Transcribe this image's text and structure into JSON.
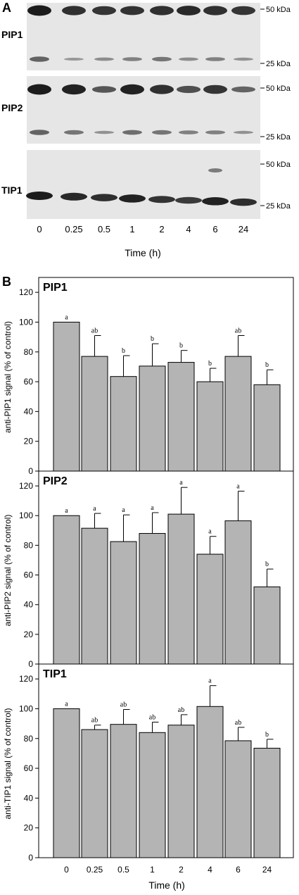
{
  "panel_a": {
    "letter": "A",
    "marker_50": "50 kDa",
    "marker_25": "25 kDa",
    "blots": [
      {
        "label": "PIP1",
        "bands_50": [
          1.0,
          0.85,
          0.8,
          0.82,
          0.85,
          0.9,
          0.85,
          0.8
        ],
        "bands_25": [
          0.7,
          0.25,
          0.35,
          0.45,
          0.55,
          0.35,
          0.45,
          0.3
        ]
      },
      {
        "label": "PIP2",
        "bands_50": [
          1.0,
          0.95,
          0.55,
          0.95,
          0.85,
          0.6,
          0.8,
          0.45
        ],
        "bands_25": [
          0.7,
          0.55,
          0.3,
          0.6,
          0.55,
          0.45,
          0.45,
          0.3
        ]
      },
      {
        "label": "TIP1",
        "bands_28": [
          1.0,
          0.9,
          0.85,
          0.95,
          0.8,
          0.75,
          0.95,
          0.85
        ],
        "extra_50_lane": 6
      }
    ],
    "lanes": [
      "0",
      "0.25",
      "0.5",
      "1",
      "2",
      "4",
      "6",
      "24"
    ],
    "xlabel": "Time (h)"
  },
  "panel_b": {
    "letter": "B",
    "xlabel": "Time (h)"
  },
  "chart_data": [
    {
      "type": "bar",
      "title": "PIP1",
      "categories": [
        "0",
        "0.25",
        "0.5",
        "1",
        "2",
        "4",
        "6",
        "24"
      ],
      "values": [
        100,
        77,
        63.5,
        70.5,
        73,
        60,
        77,
        58
      ],
      "errors": [
        0,
        14,
        14,
        15,
        8,
        9,
        14,
        10
      ],
      "significance": [
        "a",
        "ab",
        "b",
        "b",
        "b",
        "b",
        "ab",
        "b"
      ],
      "ylabel": "anti-PIP1 signal (% of control)",
      "ylim": [
        0,
        130
      ],
      "yticks": [
        0,
        20,
        40,
        60,
        80,
        100,
        120
      ],
      "bar_color": "#b4b4b4"
    },
    {
      "type": "bar",
      "title": "PIP2",
      "categories": [
        "0",
        "0.25",
        "0.5",
        "1",
        "2",
        "4",
        "6",
        "24"
      ],
      "values": [
        100,
        91.5,
        82.5,
        88,
        101,
        74,
        96.5,
        52
      ],
      "errors": [
        0,
        10,
        18,
        14,
        18,
        12,
        20,
        12
      ],
      "significance": [
        "a",
        "a",
        "a",
        "a",
        "a",
        "a",
        "a",
        "b"
      ],
      "ylabel": "anti-PIP2 signal (% of control)",
      "ylim": [
        0,
        130
      ],
      "yticks": [
        0,
        20,
        40,
        60,
        80,
        100,
        120
      ],
      "bar_color": "#b4b4b4"
    },
    {
      "type": "bar",
      "title": "TIP1",
      "categories": [
        "0",
        "0.25",
        "0.5",
        "1",
        "2",
        "4",
        "6",
        "24"
      ],
      "values": [
        100,
        86,
        89.5,
        84,
        89,
        101.5,
        78.5,
        73.5
      ],
      "errors": [
        0,
        3,
        10,
        7,
        7,
        14,
        9,
        6
      ],
      "significance": [
        "a",
        "ab",
        "ab",
        "ab",
        "ab",
        "a",
        "ab",
        "b"
      ],
      "ylabel": "anti-TIP1 signal (% of control)",
      "ylim": [
        0,
        130
      ],
      "yticks": [
        0,
        20,
        40,
        60,
        80,
        100,
        120
      ],
      "bar_color": "#b4b4b4"
    }
  ]
}
